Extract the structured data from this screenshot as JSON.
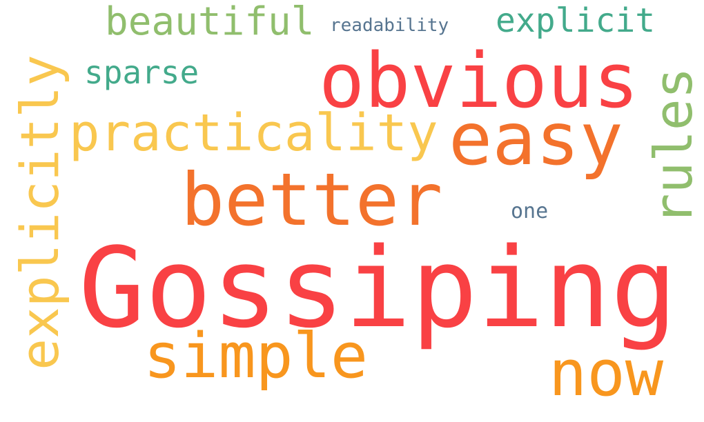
{
  "colors": {
    "red": "#f94144",
    "orange": "#f3722c",
    "amber": "#f8961e",
    "yellow": "#f9c74f",
    "green": "#90be6d",
    "teal": "#43aa8b",
    "slate": "#577590"
  },
  "words": {
    "gossiping": "Gossiping",
    "obvious": "obvious",
    "easy": "easy",
    "better": "better",
    "practicality": "practicality",
    "simple": "simple",
    "now": "now",
    "beautiful": "beautiful",
    "explicit": "explicit",
    "sparse": "sparse",
    "readability": "readability",
    "one": "one",
    "explicitly": "explicitly",
    "rules": "rules"
  }
}
